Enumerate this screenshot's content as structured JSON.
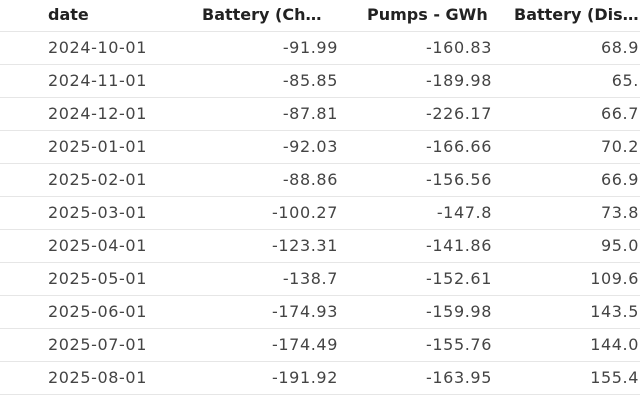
{
  "header": {
    "columns": [
      "date",
      "Battery (Ch…",
      "Pumps - GWh",
      "Battery (Dis…"
    ]
  },
  "table": {
    "rows": [
      [
        "2024-10-01",
        "-91.99",
        "-160.83",
        "68.9"
      ],
      [
        "2024-11-01",
        "-85.85",
        "-189.98",
        "65."
      ],
      [
        "2024-12-01",
        "-87.81",
        "-226.17",
        "66.7"
      ],
      [
        "2025-01-01",
        "-92.03",
        "-166.66",
        "70.2"
      ],
      [
        "2025-02-01",
        "-88.86",
        "-156.56",
        "66.9"
      ],
      [
        "2025-03-01",
        "-100.27",
        "-147.8",
        "73.8"
      ],
      [
        "2025-04-01",
        "-123.31",
        "-141.86",
        "95.0"
      ],
      [
        "2025-05-01",
        "-138.7",
        "-152.61",
        "109.6"
      ],
      [
        "2025-06-01",
        "-174.93",
        "-159.98",
        "143.5"
      ],
      [
        "2025-07-01",
        "-174.49",
        "-155.76",
        "144.0"
      ],
      [
        "2025-08-01",
        "-191.92",
        "-163.95",
        "155.4"
      ]
    ]
  }
}
